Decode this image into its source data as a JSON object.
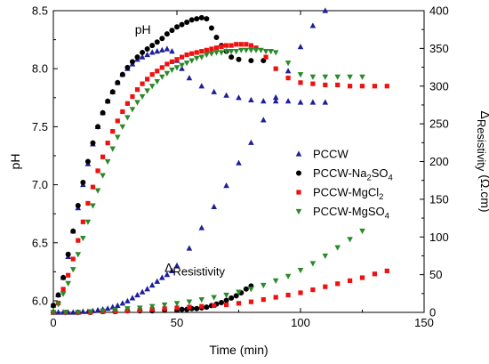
{
  "chart_data": {
    "type": "scatter",
    "xlabel": "Time (min)",
    "ylabel_left": "pH",
    "ylabel_right_main": "Δ",
    "ylabel_right_sub": "Resistivity",
    "ylabel_right_suffix": " (Ω.cm)",
    "xlim": [
      0,
      150
    ],
    "ylim_left": [
      5.9,
      8.5
    ],
    "ylim_right": [
      0,
      400
    ],
    "x_ticks": [
      0,
      50,
      100,
      150
    ],
    "y_left_ticks": [
      "6.0",
      "6.5",
      "7.0",
      "7.5",
      "8.0",
      "8.5"
    ],
    "y_right_ticks": [
      0,
      50,
      100,
      150,
      200,
      250,
      300,
      350,
      400
    ],
    "annotations": [
      {
        "text_main": "pH",
        "text_sub": "",
        "x": 33,
        "y_left": 8.3
      },
      {
        "text_main": "Δ",
        "text_sub": "Resistivity",
        "x": 45,
        "y_left": 6.25
      }
    ],
    "legend": {
      "placement": "center-right",
      "entries": [
        {
          "label": "PCCW",
          "sub": "",
          "tail": ""
        },
        {
          "label": "PCCW-Na",
          "sub": "2",
          "tail": "SO",
          "sub2": "4"
        },
        {
          "label": "PCCW-MgCl",
          "sub": "2",
          "tail": ""
        },
        {
          "label": "PCCW-MgSO",
          "sub": "4",
          "tail": ""
        }
      ]
    },
    "series": [
      {
        "name": "PCCW",
        "color": "#1f1f9a",
        "marker": "triangle-up",
        "ph": {
          "x": [
            0,
            2,
            4,
            6,
            8,
            10,
            12,
            14,
            16,
            18,
            20,
            22,
            24,
            26,
            28,
            30,
            32,
            34,
            36,
            38,
            40,
            42,
            44,
            46,
            48,
            50,
            52,
            55,
            60,
            65,
            70,
            75,
            80,
            85,
            90,
            95,
            100,
            105,
            110
          ],
          "y": [
            5.96,
            6.05,
            6.2,
            6.38,
            6.6,
            6.8,
            7.0,
            7.18,
            7.35,
            7.5,
            7.62,
            7.72,
            7.8,
            7.88,
            7.95,
            8.0,
            8.04,
            8.08,
            8.1,
            8.12,
            8.14,
            8.15,
            8.16,
            8.17,
            8.15,
            8.07,
            8.0,
            7.92,
            7.85,
            7.8,
            7.77,
            7.75,
            7.73,
            7.72,
            7.72,
            7.72,
            7.71,
            7.71,
            7.71
          ]
        },
        "resistivity": {
          "x": [
            0,
            2,
            4,
            6,
            8,
            10,
            12,
            14,
            16,
            18,
            20,
            22,
            24,
            26,
            28,
            30,
            32,
            34,
            36,
            38,
            40,
            42,
            44,
            46,
            48,
            50,
            55,
            60,
            65,
            70,
            75,
            80,
            85,
            90,
            95,
            100,
            105,
            110
          ],
          "y": [
            0,
            0,
            0,
            0,
            0,
            0,
            1,
            1,
            2,
            3,
            4,
            5,
            7,
            9,
            12,
            15,
            19,
            23,
            27,
            31,
            36,
            41,
            46,
            50,
            55,
            62,
            85,
            112,
            140,
            168,
            198,
            225,
            255,
            285,
            320,
            352,
            380,
            400
          ]
        }
      },
      {
        "name": "PCCW-Na2SO4",
        "color": "#000000",
        "marker": "circle",
        "ph": {
          "x": [
            0,
            2,
            4,
            6,
            8,
            10,
            12,
            14,
            16,
            18,
            20,
            22,
            24,
            26,
            28,
            30,
            32,
            34,
            36,
            38,
            40,
            42,
            44,
            46,
            48,
            50,
            52,
            54,
            56,
            58,
            60,
            62,
            64,
            66,
            68,
            70,
            72,
            75,
            80,
            85
          ],
          "y": [
            5.96,
            6.05,
            6.2,
            6.4,
            6.6,
            6.82,
            7.02,
            7.2,
            7.36,
            7.5,
            7.62,
            7.72,
            7.8,
            7.88,
            7.95,
            8.01,
            8.06,
            8.1,
            8.14,
            8.17,
            8.2,
            8.23,
            8.26,
            8.3,
            8.33,
            8.36,
            8.38,
            8.4,
            8.42,
            8.43,
            8.44,
            8.43,
            8.35,
            8.27,
            8.2,
            8.15,
            8.1,
            8.08,
            8.07,
            8.07
          ]
        },
        "resistivity": {
          "x": [
            0,
            5,
            10,
            15,
            20,
            25,
            30,
            35,
            40,
            45,
            50,
            52,
            54,
            56,
            58,
            60,
            62,
            64,
            66,
            68,
            70,
            72,
            74,
            76,
            78,
            80
          ],
          "y": [
            0,
            0,
            0,
            0,
            1,
            1,
            2,
            2,
            2,
            3,
            3,
            4,
            4,
            5,
            5,
            6,
            7,
            9,
            11,
            13,
            16,
            19,
            22,
            26,
            31,
            35
          ]
        }
      },
      {
        "name": "PCCW-MgCl2",
        "color": "#ee1111",
        "marker": "square",
        "ph": {
          "x": [
            2,
            4,
            6,
            8,
            10,
            12,
            14,
            16,
            18,
            20,
            22,
            24,
            26,
            28,
            30,
            32,
            34,
            36,
            38,
            40,
            42,
            44,
            46,
            48,
            50,
            52,
            54,
            56,
            58,
            60,
            62,
            64,
            66,
            68,
            70,
            72,
            74,
            76,
            78,
            80,
            82,
            86,
            90,
            95,
            100,
            105,
            110,
            115,
            120,
            125,
            130,
            135
          ],
          "y": [
            5.98,
            6.1,
            6.22,
            6.36,
            6.52,
            6.68,
            6.84,
            6.98,
            7.12,
            7.24,
            7.36,
            7.46,
            7.55,
            7.63,
            7.7,
            7.76,
            7.82,
            7.87,
            7.91,
            7.95,
            7.98,
            8.01,
            8.04,
            8.06,
            8.08,
            8.1,
            8.12,
            8.13,
            8.14,
            8.15,
            8.16,
            8.17,
            8.18,
            8.19,
            8.2,
            8.2,
            8.21,
            8.21,
            8.21,
            8.2,
            8.18,
            8.1,
            8.0,
            7.92,
            7.88,
            7.87,
            7.86,
            7.86,
            7.85,
            7.85,
            7.85,
            7.85
          ]
        },
        "resistivity": {
          "x": [
            0,
            5,
            10,
            15,
            20,
            25,
            30,
            35,
            40,
            45,
            50,
            55,
            60,
            65,
            70,
            75,
            80,
            85,
            90,
            95,
            100,
            105,
            110,
            115,
            120,
            125,
            130,
            135
          ],
          "y": [
            0,
            0,
            0,
            0,
            1,
            1,
            2,
            3,
            4,
            5,
            6,
            7,
            8,
            9,
            10,
            12,
            14,
            17,
            20,
            23,
            26,
            30,
            34,
            38,
            42,
            46,
            51,
            55
          ]
        }
      },
      {
        "name": "PCCW-MgSO4",
        "color": "#2a8a2a",
        "marker": "triangle-down",
        "ph": {
          "x": [
            2,
            4,
            6,
            8,
            10,
            12,
            14,
            16,
            18,
            20,
            22,
            24,
            26,
            28,
            30,
            32,
            34,
            36,
            38,
            40,
            42,
            44,
            46,
            48,
            50,
            52,
            54,
            56,
            58,
            60,
            62,
            64,
            66,
            68,
            70,
            72,
            74,
            76,
            78,
            80,
            82,
            84,
            86,
            88,
            90,
            95,
            100,
            105,
            110,
            115,
            120,
            125
          ],
          "y": [
            5.97,
            6.06,
            6.15,
            6.27,
            6.4,
            6.54,
            6.68,
            6.82,
            6.95,
            7.08,
            7.2,
            7.31,
            7.41,
            7.5,
            7.58,
            7.65,
            7.71,
            7.76,
            7.81,
            7.85,
            7.89,
            7.93,
            7.96,
            7.99,
            8.01,
            8.03,
            8.05,
            8.07,
            8.09,
            8.1,
            8.12,
            8.13,
            8.14,
            8.14,
            8.15,
            8.15,
            8.15,
            8.16,
            8.16,
            8.16,
            8.16,
            8.16,
            8.15,
            8.15,
            8.14,
            8.05,
            7.95,
            7.93,
            7.93,
            7.93,
            7.93,
            7.93
          ]
        },
        "resistivity": {
          "x": [
            0,
            5,
            10,
            15,
            20,
            25,
            30,
            35,
            40,
            45,
            50,
            55,
            60,
            65,
            70,
            75,
            80,
            85,
            90,
            95,
            100,
            105,
            110,
            115,
            120,
            125
          ],
          "y": [
            0,
            0,
            0,
            1,
            2,
            3,
            5,
            6,
            8,
            10,
            12,
            14,
            17,
            20,
            23,
            27,
            31,
            36,
            42,
            48,
            56,
            65,
            75,
            86,
            97,
            108
          ]
        }
      }
    ]
  }
}
